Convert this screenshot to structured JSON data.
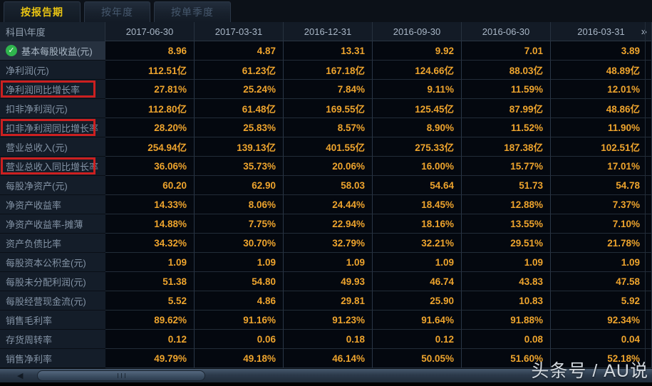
{
  "tabs": [
    {
      "label": "按报告期",
      "active": true
    },
    {
      "label": "按年度",
      "active": false
    },
    {
      "label": "按单季度",
      "active": false
    }
  ],
  "table": {
    "corner_header": "科目\\年度",
    "columns": [
      "2017-06-30",
      "2017-03-31",
      "2016-12-31",
      "2016-09-30",
      "2016-06-30",
      "2016-03-31"
    ],
    "more_icon": "»",
    "rows": [
      {
        "label": "基本每股收益(元)",
        "checked": true,
        "boxed": false,
        "values": [
          "8.96",
          "4.87",
          "13.31",
          "9.92",
          "7.01",
          "3.89"
        ]
      },
      {
        "label": "净利润(元)",
        "checked": false,
        "boxed": false,
        "values": [
          "112.51亿",
          "61.23亿",
          "167.18亿",
          "124.66亿",
          "88.03亿",
          "48.89亿"
        ]
      },
      {
        "label": "净利润同比增长率",
        "checked": false,
        "boxed": true,
        "values": [
          "27.81%",
          "25.24%",
          "7.84%",
          "9.11%",
          "11.59%",
          "12.01%"
        ]
      },
      {
        "label": "扣非净利润(元)",
        "checked": false,
        "boxed": false,
        "values": [
          "112.80亿",
          "61.48亿",
          "169.55亿",
          "125.45亿",
          "87.99亿",
          "48.86亿"
        ]
      },
      {
        "label": "扣非净利润同比增长率",
        "checked": false,
        "boxed": true,
        "values": [
          "28.20%",
          "25.83%",
          "8.57%",
          "8.90%",
          "11.52%",
          "11.90%"
        ]
      },
      {
        "label": "营业总收入(元)",
        "checked": false,
        "boxed": false,
        "values": [
          "254.94亿",
          "139.13亿",
          "401.55亿",
          "275.33亿",
          "187.38亿",
          "102.51亿"
        ]
      },
      {
        "label": "营业总收入同比增长率",
        "checked": false,
        "boxed": true,
        "values": [
          "36.06%",
          "35.73%",
          "20.06%",
          "16.00%",
          "15.77%",
          "17.01%"
        ]
      },
      {
        "label": "每股净资产(元)",
        "checked": false,
        "boxed": false,
        "values": [
          "60.20",
          "62.90",
          "58.03",
          "54.64",
          "51.73",
          "54.78"
        ]
      },
      {
        "label": "净资产收益率",
        "checked": false,
        "boxed": false,
        "values": [
          "14.33%",
          "8.06%",
          "24.44%",
          "18.45%",
          "12.88%",
          "7.37%"
        ]
      },
      {
        "label": "净资产收益率-摊薄",
        "checked": false,
        "boxed": false,
        "values": [
          "14.88%",
          "7.75%",
          "22.94%",
          "18.16%",
          "13.55%",
          "7.10%"
        ]
      },
      {
        "label": "资产负债比率",
        "checked": false,
        "boxed": false,
        "values": [
          "34.32%",
          "30.70%",
          "32.79%",
          "32.21%",
          "29.51%",
          "21.78%"
        ]
      },
      {
        "label": "每股资本公积金(元)",
        "checked": false,
        "boxed": false,
        "values": [
          "1.09",
          "1.09",
          "1.09",
          "1.09",
          "1.09",
          "1.09"
        ]
      },
      {
        "label": "每股未分配利润(元)",
        "checked": false,
        "boxed": false,
        "values": [
          "51.38",
          "54.80",
          "49.93",
          "46.74",
          "43.83",
          "47.58"
        ]
      },
      {
        "label": "每股经营现金流(元)",
        "checked": false,
        "boxed": false,
        "values": [
          "5.52",
          "4.86",
          "29.81",
          "25.90",
          "10.83",
          "5.92"
        ]
      },
      {
        "label": "销售毛利率",
        "checked": false,
        "boxed": false,
        "values": [
          "89.62%",
          "91.16%",
          "91.23%",
          "91.64%",
          "91.88%",
          "92.34%"
        ]
      },
      {
        "label": "存货周转率",
        "checked": false,
        "boxed": false,
        "values": [
          "0.12",
          "0.06",
          "0.18",
          "0.12",
          "0.08",
          "0.04"
        ]
      },
      {
        "label": "销售净利率",
        "checked": false,
        "boxed": false,
        "values": [
          "49.79%",
          "49.18%",
          "46.14%",
          "50.05%",
          "51.60%",
          "52.18%"
        ]
      }
    ]
  },
  "scrollbar": {
    "left_arrow": "◀"
  },
  "icons": {
    "check": "✓"
  },
  "watermark": "头条号 / AU说",
  "colors": {
    "accent_yellow": "#e9c413",
    "value_orange": "#eea42d",
    "box_red": "#cc2020",
    "check_green": "#2fb54d",
    "background": "#0b1017"
  }
}
